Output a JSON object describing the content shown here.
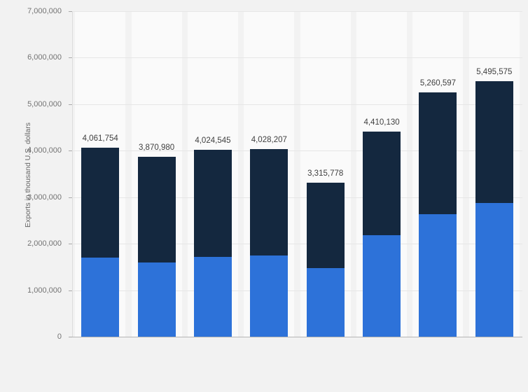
{
  "chart_data": {
    "type": "bar",
    "stacked": true,
    "title": "",
    "xlabel": "",
    "ylabel": "Exports in thousand U.S. dollars",
    "ylim": [
      0,
      7000000
    ],
    "ytick_labels": [
      "7,000,000",
      "6,000,000",
      "5,000,000",
      "4,000,000",
      "3,000,000",
      "2,000,000",
      "1,000,000",
      "0"
    ],
    "grid": true,
    "legend": "none",
    "categories": [
      "",
      "",
      "",
      "",
      "",
      "",
      "",
      ""
    ],
    "series": [
      {
        "name": "bottom-segment",
        "color": "#2d72d9",
        "values": [
          1700000,
          1590000,
          1720000,
          1750000,
          1475000,
          2190000,
          2640000,
          2870000
        ]
      },
      {
        "name": "top-segment",
        "color": "#14283f",
        "values": [
          2361754,
          2280980,
          2304545,
          2278207,
          1840778,
          2220130,
          2620597,
          2625575
        ]
      }
    ],
    "totals": [
      4061754,
      3870980,
      4024545,
      4028207,
      3315778,
      4410130,
      5260597,
      5495575
    ],
    "total_labels": [
      "4,061,754",
      "3,870,980",
      "4,024,545",
      "4,028,207",
      "3,315,778",
      "4,410,130",
      "5,260,597",
      "5,495,575"
    ]
  },
  "colors": {
    "background": "#f2f2f2",
    "band": "#fafafa",
    "gridline": "#e6e6e6",
    "axis_line": "#b5b5b5",
    "bar_blue": "#2d72d9",
    "bar_dark": "#14283f",
    "tick_text": "#737373",
    "label_text": "#404040"
  }
}
